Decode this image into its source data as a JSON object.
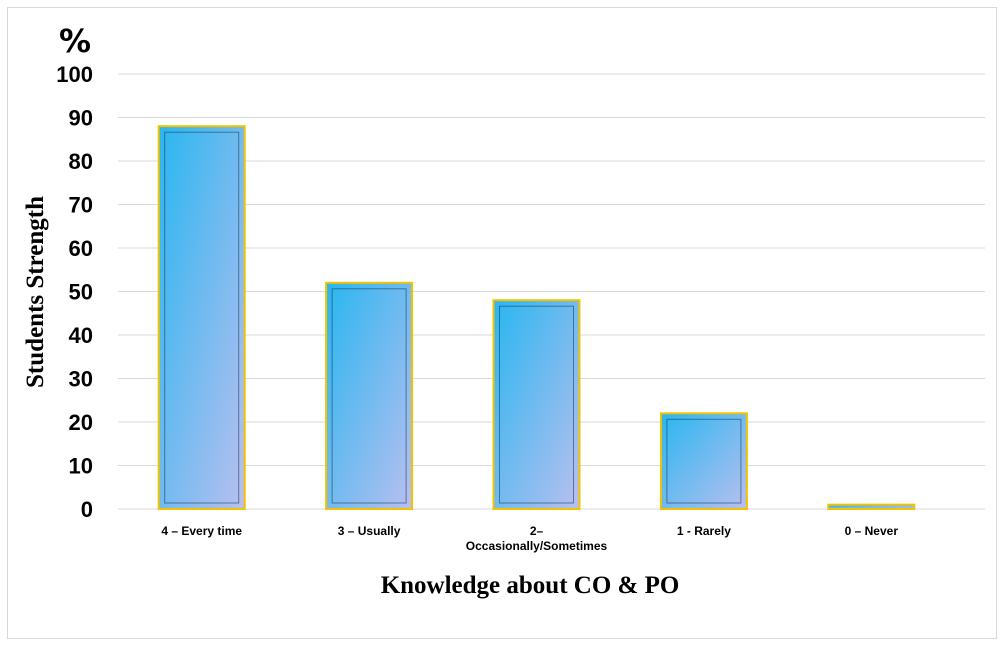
{
  "chart_data": {
    "type": "bar",
    "title": "",
    "unit_label": "%",
    "xlabel": "Knowledge about CO & PO",
    "ylabel": "Students Strength",
    "categories": [
      "4 – Every time",
      "3 – Usually",
      "2–\nOccasionally/Sometimes",
      "1 - Rarely",
      "0 – Never"
    ],
    "values": [
      88,
      52,
      48,
      22,
      1
    ],
    "ylim": [
      0,
      100
    ],
    "yticks": [
      0,
      10,
      20,
      30,
      40,
      50,
      60,
      70,
      80,
      90,
      100
    ],
    "grid": true,
    "legend": "none",
    "colors": {
      "bar_fill_top": "#29b6f0",
      "bar_fill_bottom": "#b9bff0",
      "bar_border": "#f2c300",
      "bar_inner_edge": "#17374f",
      "grid": "#d9d9d9"
    }
  }
}
